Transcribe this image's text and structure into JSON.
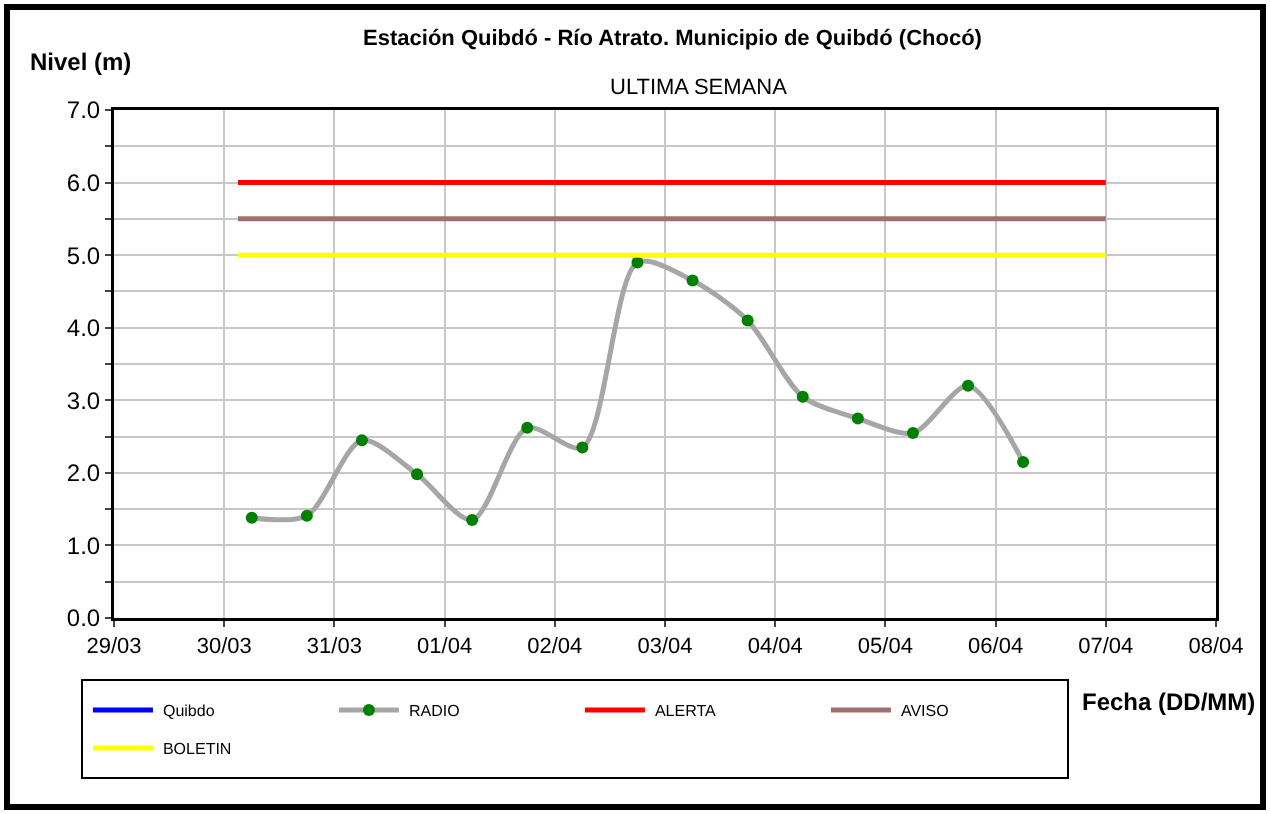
{
  "chart_data": {
    "type": "line",
    "title": "Estación Quibdó - Río Atrato. Municipio de Quibdó (Chocó)",
    "subtitle": "ULTIMA SEMANA",
    "xlabel": "Fecha (DD/MM)",
    "ylabel": "Nivel (m)",
    "series": [
      {
        "name": "Quibdo",
        "color": "#0000ff"
      },
      {
        "name": "RADIO",
        "color": "#a6a6a6",
        "colors": [
          "#008000",
          "#008000",
          "#008000",
          "#008000",
          "#008000",
          "#008000",
          "#008000",
          "#008000",
          "#008000",
          "#008000",
          "#008000",
          "#008000",
          "#008000",
          "#008000",
          "#008000"
        ],
        "marker": "circle",
        "x": [
          "--03-30T06:00",
          "--03-30T18:00",
          "--03-31T06:00",
          "--03-31T18:00",
          "--04-01T06:00",
          "--04-01T18:00",
          "--04-02T06:00",
          "--04-02T18:00",
          "--04-03T06:00",
          "--04-03T18:00",
          "--04-04T06:00",
          "--04-04T18:00",
          "--04-05T06:00",
          "--04-05T18:00",
          "--04-06T06:00"
        ],
        "values": [
          1.38,
          1.41,
          2.45,
          1.98,
          1.35,
          2.62,
          2.35,
          4.9,
          4.65,
          4.1,
          3.05,
          2.75,
          2.55,
          3.2,
          2.15
        ]
      },
      {
        "name": "ALERTA",
        "color": "#ff0000",
        "x": [
          "--03-30T03:00",
          "--04-07"
        ],
        "values": [
          6.0,
          6.0
        ]
      },
      {
        "name": "AVISO",
        "color": "#a07070",
        "x": [
          "--03-30T03:00",
          "--04-07"
        ],
        "values": [
          5.5,
          5.5
        ]
      },
      {
        "name": "BOLETIN",
        "color": "#ffff00",
        "x": [
          "--03-30T03:00",
          "--04-07"
        ],
        "values": [
          5.0,
          5.0
        ]
      }
    ],
    "xlim": [
      "--03-29",
      "--04-08"
    ],
    "xticks": [
      {
        "value": "--03-29",
        "label": "29/03"
      },
      {
        "value": "--03-30",
        "label": "30/03"
      },
      {
        "value": "--03-31",
        "label": "31/03"
      },
      {
        "value": "--04-01",
        "label": "01/04"
      },
      {
        "value": "--04-02",
        "label": "02/04"
      },
      {
        "value": "--04-03",
        "label": "03/04"
      },
      {
        "value": "--04-04",
        "label": "04/04"
      },
      {
        "value": "--04-05",
        "label": "05/04"
      },
      {
        "value": "--04-06",
        "label": "06/04"
      },
      {
        "value": "--04-07",
        "label": "07/04"
      },
      {
        "value": "--04-08",
        "label": "08/04"
      }
    ],
    "ylim": [
      0,
      7
    ],
    "yticks": [
      {
        "value": 0,
        "label": "0.0"
      },
      {
        "value": 0.5,
        "label": null
      },
      {
        "value": 1,
        "label": "1.0"
      },
      {
        "value": 1.5,
        "label": null
      },
      {
        "value": 2,
        "label": "2.0"
      },
      {
        "value": 2.5,
        "label": null
      },
      {
        "value": 3,
        "label": "3.0"
      },
      {
        "value": 3.5,
        "label": null
      },
      {
        "value": 4,
        "label": "4.0"
      },
      {
        "value": 4.5,
        "label": null
      },
      {
        "value": 5,
        "label": "5.0"
      },
      {
        "value": 5.5,
        "label": null
      },
      {
        "value": 6,
        "label": "6.0"
      },
      {
        "value": 6.5,
        "label": null
      },
      {
        "value": 7,
        "label": "7.0"
      }
    ],
    "grid": true,
    "legend": "bottom",
    "line_style": "solid"
  }
}
